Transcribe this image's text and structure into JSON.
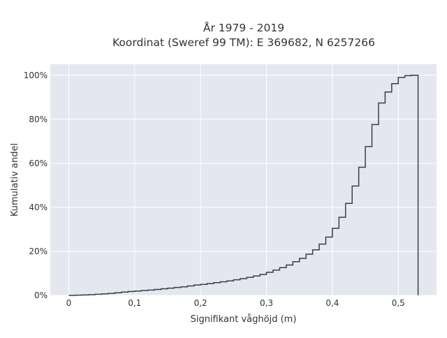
{
  "chart_data": {
    "type": "line",
    "subtype": "cumulative-step",
    "title_lines": [
      "År 1979 - 2019",
      "Koordinat (Sweref 99 TM): E 369682, N 6257266"
    ],
    "xlabel": "Signifikant våghöjd (m)",
    "ylabel": "Kumulativ andel",
    "xlim": [
      -0.028,
      0.558
    ],
    "ylim": [
      0,
      1.05
    ],
    "x_ticks": [
      0,
      0.1,
      0.2,
      0.3,
      0.4,
      0.5
    ],
    "x_tick_labels": [
      "0",
      "0,1",
      "0,2",
      "0,3",
      "0,4",
      "0,5"
    ],
    "y_ticks": [
      0,
      0.2,
      0.4,
      0.6,
      0.8,
      1.0
    ],
    "y_tick_labels": [
      "0%",
      "20%",
      "40%",
      "60%",
      "80%",
      "100%"
    ],
    "grid": true,
    "colors": {
      "line": "#333f4f",
      "plot_bg": "#e5e7f0",
      "grid": "#ffffff"
    },
    "series": [
      {
        "x": [
          0,
          0.01,
          0.02,
          0.03,
          0.04,
          0.05,
          0.06,
          0.07,
          0.08,
          0.09,
          0.1,
          0.11,
          0.12,
          0.13,
          0.14,
          0.15,
          0.16,
          0.17,
          0.18,
          0.19,
          0.2,
          0.21,
          0.22,
          0.23,
          0.24,
          0.25,
          0.26,
          0.27,
          0.28,
          0.29,
          0.3,
          0.31,
          0.32,
          0.33,
          0.34,
          0.35,
          0.36,
          0.37,
          0.38,
          0.39,
          0.4,
          0.41,
          0.42,
          0.43,
          0.44,
          0.45,
          0.46,
          0.47,
          0.48,
          0.49,
          0.5,
          0.51,
          0.52,
          0.53
        ],
        "y": [
          0.0,
          0.001,
          0.002,
          0.003,
          0.005,
          0.007,
          0.009,
          0.012,
          0.015,
          0.018,
          0.02,
          0.022,
          0.024,
          0.027,
          0.03,
          0.033,
          0.036,
          0.039,
          0.043,
          0.047,
          0.05,
          0.054,
          0.058,
          0.062,
          0.066,
          0.071,
          0.076,
          0.082,
          0.088,
          0.095,
          0.105,
          0.115,
          0.126,
          0.138,
          0.153,
          0.168,
          0.187,
          0.207,
          0.233,
          0.265,
          0.305,
          0.355,
          0.418,
          0.497,
          0.582,
          0.676,
          0.776,
          0.874,
          0.924,
          0.962,
          0.99,
          0.998,
          1.0,
          0.0
        ]
      }
    ]
  }
}
